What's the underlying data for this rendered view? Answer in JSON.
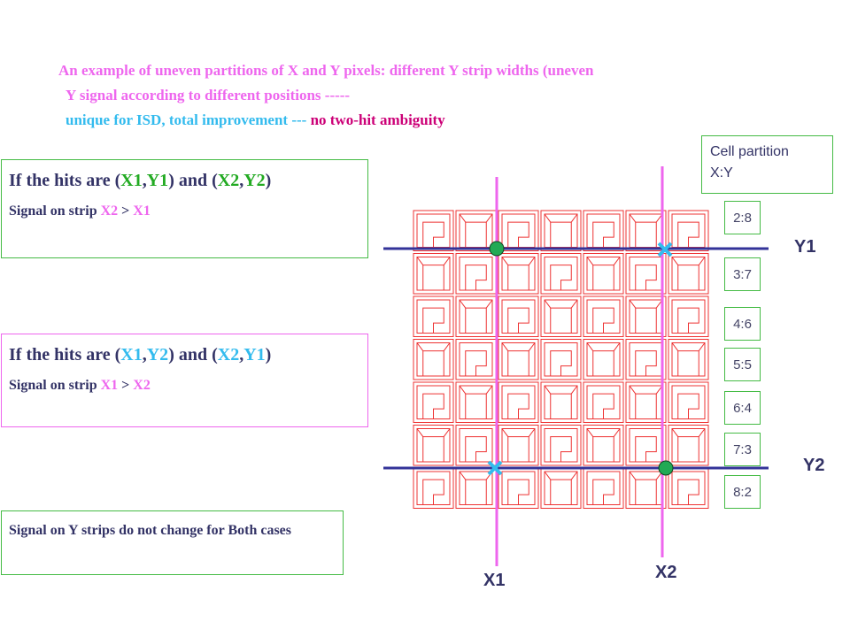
{
  "header": {
    "line1": "An example of uneven partitions of X and Y pixels: different Y strip widths (uneven",
    "line2": "Y signal according to different positions -----",
    "line3a": "unique for ISD, total improvement --- ",
    "line3b": "no two-hit ambiguity"
  },
  "case1": {
    "t1": "If the hits are (",
    "x1": "X1",
    "c1": ",",
    "y1": "Y1",
    "t2": ") and (",
    "x2": "X2",
    "c2": ",",
    "y2": "Y2",
    "t3": ")",
    "s1": "Signal on strip ",
    "sa": "X2",
    "s2": " > ",
    "sb": "X1"
  },
  "case2": {
    "t1": "If the hits are (",
    "x1": "X1",
    "c1": ",",
    "y2": "Y2",
    "t2": ") and (",
    "x2": "X2",
    "c2": ",",
    "y1": "Y1",
    "t3": ")",
    "s1": "Signal on strip ",
    "sa": "X1",
    "s2": " > ",
    "sb": "X2"
  },
  "note": "Signal on Y strips do not change for Both cases",
  "cell_partition": {
    "line1": "Cell partition",
    "line2": "X:Y"
  },
  "ratios": [
    "2:8",
    "3:7",
    "4:6",
    "5:5",
    "6:4",
    "7:3",
    "8:2"
  ],
  "labels": {
    "y1": "Y1",
    "y2": "Y2",
    "x1": "X1",
    "x2": "X2"
  },
  "colors": {
    "grid": "#ee3333",
    "strip_x": "#ee66ee",
    "strip_y": "#333399",
    "hit": "#22aa55",
    "ghost": "#33bbee"
  }
}
